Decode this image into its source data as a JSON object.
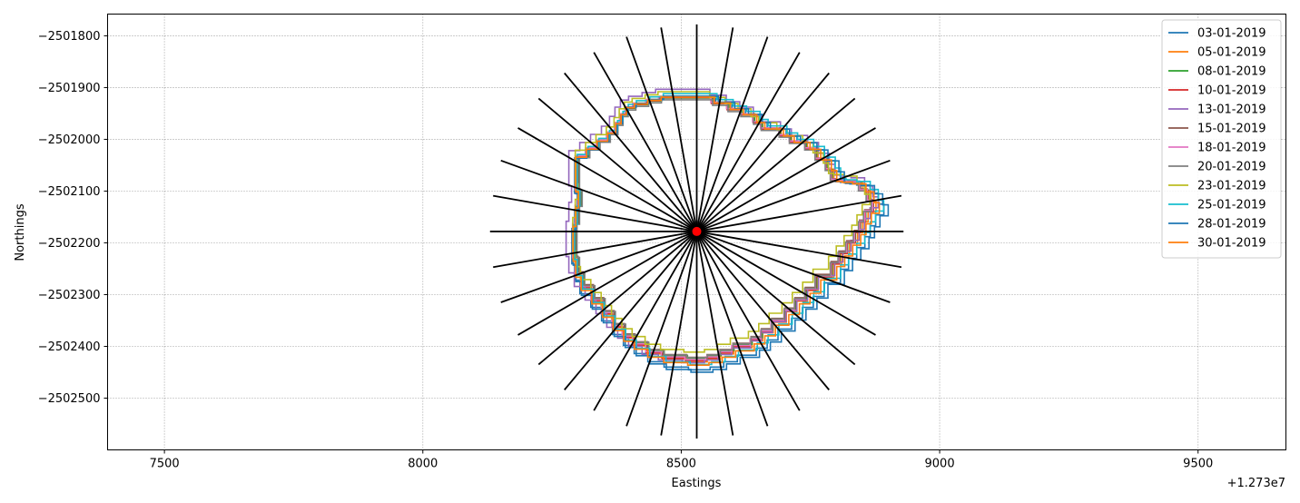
{
  "chart_data": {
    "type": "line",
    "xlabel": "Eastings",
    "ylabel": "Northings",
    "x_offset_label": "+1.273e7",
    "x_offset": 12730000,
    "xlim": [
      7390,
      9670
    ],
    "ylim": [
      -2502600,
      -2501758
    ],
    "x_ticks": [
      7500,
      8000,
      8500,
      9000,
      9500
    ],
    "y_ticks": [
      -2501800,
      -2501900,
      -2502000,
      -2502100,
      -2502200,
      -2502300,
      -2502400,
      -2502500
    ],
    "x_tick_labels": [
      "7500",
      "8000",
      "8500",
      "9000",
      "9500"
    ],
    "y_tick_labels": [
      "−2501800",
      "−2501900",
      "−2502000",
      "−2502100",
      "−2502200",
      "−2502300",
      "−2502400",
      "−2502500"
    ],
    "grid": true,
    "legend_position": "top-right",
    "center": {
      "x": 8530,
      "y": -2502178,
      "color": "#ff0000"
    },
    "transects": {
      "color": "#000000",
      "count": 36,
      "endpoints": [
        [
          8930,
          -2502178
        ],
        [
          8926,
          -2502109
        ],
        [
          8904,
          -2502041
        ],
        [
          8876,
          -2501978
        ],
        [
          8836,
          -2501921
        ],
        [
          8786,
          -2501872
        ],
        [
          8729,
          -2501832
        ],
        [
          8667,
          -2501802
        ],
        [
          8600,
          -2501784
        ],
        [
          8530,
          -2501778
        ],
        [
          8461,
          -2501784
        ],
        [
          8394,
          -2501802
        ],
        [
          8331,
          -2501832
        ],
        [
          8274,
          -2501872
        ],
        [
          8224,
          -2501921
        ],
        [
          8184,
          -2501978
        ],
        [
          8151,
          -2502041
        ],
        [
          8136,
          -2502109
        ],
        [
          8130,
          -2502178
        ],
        [
          8136,
          -2502247
        ],
        [
          8151,
          -2502315
        ],
        [
          8184,
          -2502378
        ],
        [
          8224,
          -2502435
        ],
        [
          8274,
          -2502484
        ],
        [
          8331,
          -2502524
        ],
        [
          8394,
          -2502554
        ],
        [
          8461,
          -2502572
        ],
        [
          8530,
          -2502578
        ],
        [
          8600,
          -2502572
        ],
        [
          8667,
          -2502554
        ],
        [
          8729,
          -2502524
        ],
        [
          8786,
          -2502484
        ],
        [
          8836,
          -2502435
        ],
        [
          8876,
          -2502378
        ],
        [
          8904,
          -2502315
        ],
        [
          8926,
          -2502247
        ]
      ]
    },
    "shoreline_outline": [
      [
        8487,
        -2501922
      ],
      [
        8560,
        -2501922
      ],
      [
        8590,
        -2501933
      ],
      [
        8615,
        -2501945
      ],
      [
        8640,
        -2501955
      ],
      [
        8655,
        -2501970
      ],
      [
        8690,
        -2501982
      ],
      [
        8710,
        -2501995
      ],
      [
        8740,
        -2502007
      ],
      [
        8760,
        -2502020
      ],
      [
        8780,
        -2502040
      ],
      [
        8790,
        -2502060
      ],
      [
        8800,
        -2502080
      ],
      [
        8820,
        -2502082
      ],
      [
        8845,
        -2502085
      ],
      [
        8860,
        -2502100
      ],
      [
        8870,
        -2502120
      ],
      [
        8855,
        -2502140
      ],
      [
        8845,
        -2502160
      ],
      [
        8835,
        -2502180
      ],
      [
        8820,
        -2502200
      ],
      [
        8805,
        -2502220
      ],
      [
        8790,
        -2502240
      ],
      [
        8760,
        -2502265
      ],
      [
        8740,
        -2502290
      ],
      [
        8720,
        -2502310
      ],
      [
        8700,
        -2502330
      ],
      [
        8675,
        -2502350
      ],
      [
        8655,
        -2502370
      ],
      [
        8635,
        -2502385
      ],
      [
        8600,
        -2502398
      ],
      [
        8575,
        -2502410
      ],
      [
        8550,
        -2502420
      ],
      [
        8510,
        -2502425
      ],
      [
        8465,
        -2502420
      ],
      [
        8435,
        -2502410
      ],
      [
        8410,
        -2502395
      ],
      [
        8390,
        -2502380
      ],
      [
        8370,
        -2502360
      ],
      [
        8350,
        -2502335
      ],
      [
        8330,
        -2502310
      ],
      [
        8310,
        -2502285
      ],
      [
        8300,
        -2502260
      ],
      [
        8295,
        -2502230
      ],
      [
        8295,
        -2502200
      ],
      [
        8300,
        -2502165
      ],
      [
        8305,
        -2502130
      ],
      [
        8300,
        -2502100
      ],
      [
        8300,
        -2502060
      ],
      [
        8320,
        -2502035
      ],
      [
        8340,
        -2502020
      ],
      [
        8360,
        -2502005
      ],
      [
        8375,
        -2501990
      ],
      [
        8385,
        -2501972
      ],
      [
        8395,
        -2501955
      ],
      [
        8410,
        -2501942
      ],
      [
        8435,
        -2501935
      ],
      [
        8460,
        -2501928
      ]
    ],
    "series": [
      {
        "name": "03-01-2019",
        "color": "#1f77b4",
        "dx": 5,
        "dy": -8,
        "scale": 1.05
      },
      {
        "name": "05-01-2019",
        "color": "#ff7f0e",
        "dx": 0,
        "dy": 0,
        "scale": 1.02
      },
      {
        "name": "08-01-2019",
        "color": "#2ca02c",
        "dx": 2,
        "dy": 2,
        "scale": 1.0
      },
      {
        "name": "10-01-2019",
        "color": "#d62728",
        "dx": -2,
        "dy": 0,
        "scale": 1.01
      },
      {
        "name": "13-01-2019",
        "color": "#9467bd",
        "dx": -6,
        "dy": 6,
        "scale": 1.05
      },
      {
        "name": "15-01-2019",
        "color": "#8c564b",
        "dx": 0,
        "dy": 4,
        "scale": 1.0
      },
      {
        "name": "18-01-2019",
        "color": "#e377c2",
        "dx": -3,
        "dy": 2,
        "scale": 1.01
      },
      {
        "name": "20-01-2019",
        "color": "#7f7f7f",
        "dx": 1,
        "dy": 1,
        "scale": 0.99
      },
      {
        "name": "23-01-2019",
        "color": "#bcbd22",
        "dx": -5,
        "dy": 14,
        "scale": 1.0
      },
      {
        "name": "25-01-2019",
        "color": "#17becf",
        "dx": 8,
        "dy": 0,
        "scale": 1.04
      },
      {
        "name": "28-01-2019",
        "color": "#1f77b4",
        "dx": 10,
        "dy": -10,
        "scale": 1.06
      },
      {
        "name": "30-01-2019",
        "color": "#ff7f0e",
        "dx": 3,
        "dy": -4,
        "scale": 1.03
      }
    ]
  }
}
